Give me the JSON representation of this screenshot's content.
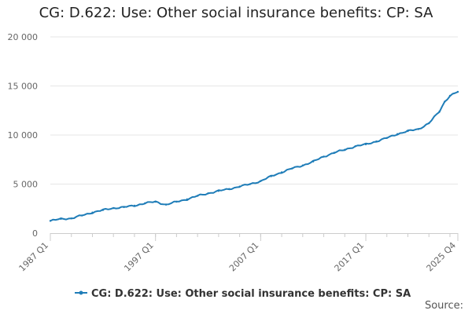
{
  "chart_data": {
    "type": "line",
    "title": "CG: D.622: Use: Other social insurance benefits: CP: SA",
    "xlabel": "",
    "ylabel": "",
    "ylim": [
      0,
      20000
    ],
    "yticks": [
      0,
      5000,
      10000,
      15000,
      20000
    ],
    "ytick_labels": [
      "0",
      "5 000",
      "10 000",
      "15 000",
      "20 000"
    ],
    "xlim": [
      1987.0,
      2025.75
    ],
    "xticks": [
      1987.0,
      1997.0,
      2007.0,
      2017.0,
      2025.75
    ],
    "xtick_labels": [
      "1987 Q1",
      "1997 Q1",
      "2007 Q1",
      "2017 Q1",
      "2025 Q4"
    ],
    "grid": true,
    "legend_position": "bottom",
    "series": [
      {
        "name": "CG: D.622: Use: Other social insurance benefits: CP: SA",
        "color": "#1f7db8",
        "x": [
          1987.0,
          1988.0,
          1989.0,
          1990.0,
          1991.0,
          1992.0,
          1993.0,
          1994.0,
          1995.0,
          1996.0,
          1997.0,
          1998.0,
          1999.0,
          2000.0,
          2001.0,
          2002.0,
          2003.0,
          2004.0,
          2005.0,
          2006.0,
          2007.0,
          2008.0,
          2009.0,
          2010.0,
          2011.0,
          2012.0,
          2013.0,
          2014.0,
          2015.0,
          2016.0,
          2017.0,
          2018.0,
          2019.0,
          2020.0,
          2021.0,
          2022.0,
          2023.0,
          2024.0,
          2024.5,
          2025.0,
          2025.75
        ],
        "values": [
          1250,
          1450,
          1500,
          1800,
          2100,
          2350,
          2550,
          2650,
          2800,
          3050,
          3200,
          2900,
          3200,
          3450,
          3800,
          4050,
          4300,
          4500,
          4750,
          5000,
          5300,
          5800,
          6200,
          6600,
          6900,
          7300,
          7800,
          8200,
          8500,
          8850,
          9050,
          9350,
          9700,
          10100,
          10400,
          10600,
          11200,
          12400,
          13400,
          14000,
          14400
        ]
      }
    ]
  },
  "source_label": "Source:"
}
